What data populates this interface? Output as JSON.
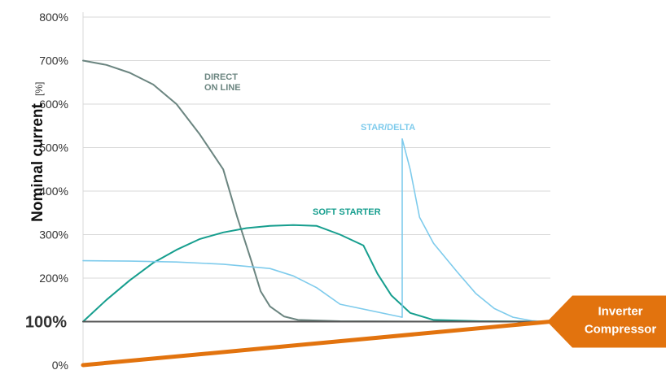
{
  "chart_data": {
    "type": "line",
    "xlabel": "",
    "ylabel": "Nominal current",
    "ylabel_unit": "[%]",
    "ylim": [
      0,
      800
    ],
    "yticks": [
      "0%",
      "100%",
      "200%",
      "300%",
      "400%",
      "500%",
      "600%",
      "700%",
      "800%"
    ],
    "emphasized_tick": "100%",
    "grid": "horizontal",
    "x_range": [
      0,
      1
    ],
    "series": [
      {
        "name": "DIRECT\nON LINE",
        "label_lines": [
          "DIRECT",
          "ON LINE"
        ],
        "color": "#6b8580",
        "points": [
          [
            0,
            700
          ],
          [
            0.05,
            690
          ],
          [
            0.1,
            672
          ],
          [
            0.15,
            645
          ],
          [
            0.2,
            600
          ],
          [
            0.25,
            530
          ],
          [
            0.3,
            450
          ],
          [
            0.33,
            340
          ],
          [
            0.36,
            240
          ],
          [
            0.38,
            170
          ],
          [
            0.4,
            135
          ],
          [
            0.43,
            112
          ],
          [
            0.46,
            104
          ],
          [
            0.55,
            101
          ],
          [
            0.8,
            100
          ],
          [
            1,
            100
          ]
        ]
      },
      {
        "name": "SOFT STARTER",
        "label_lines": [
          "SOFT STARTER"
        ],
        "color": "#169e8e",
        "points": [
          [
            0,
            100
          ],
          [
            0.05,
            150
          ],
          [
            0.1,
            195
          ],
          [
            0.15,
            235
          ],
          [
            0.2,
            265
          ],
          [
            0.25,
            290
          ],
          [
            0.3,
            305
          ],
          [
            0.35,
            315
          ],
          [
            0.4,
            320
          ],
          [
            0.45,
            322
          ],
          [
            0.5,
            320
          ],
          [
            0.55,
            300
          ],
          [
            0.6,
            275
          ],
          [
            0.63,
            210
          ],
          [
            0.66,
            160
          ],
          [
            0.7,
            120
          ],
          [
            0.75,
            104
          ],
          [
            0.85,
            101
          ],
          [
            1,
            100
          ]
        ]
      },
      {
        "name": "STAR/DELTA",
        "label_lines": [
          "STAR/DELTA"
        ],
        "color": "#7ecbec",
        "points": [
          [
            0,
            240
          ],
          [
            0.1,
            239
          ],
          [
            0.2,
            237
          ],
          [
            0.3,
            232
          ],
          [
            0.4,
            222
          ],
          [
            0.45,
            205
          ],
          [
            0.5,
            178
          ],
          [
            0.55,
            140
          ],
          [
            0.683,
            110
          ],
          [
            0.683,
            520
          ],
          [
            0.7,
            450
          ],
          [
            0.72,
            340
          ],
          [
            0.75,
            280
          ],
          [
            0.8,
            215
          ],
          [
            0.84,
            165
          ],
          [
            0.88,
            130
          ],
          [
            0.92,
            110
          ],
          [
            0.96,
            102
          ],
          [
            1,
            100
          ]
        ]
      },
      {
        "name": "100% reference",
        "color": "#555555",
        "points": [
          [
            0,
            100
          ],
          [
            1,
            100
          ]
        ]
      },
      {
        "name": "Inverter Compressor",
        "label_lines": [
          "Inverter",
          "Compressor"
        ],
        "color": "#e2730e",
        "points": [
          [
            0,
            0
          ],
          [
            1,
            100
          ]
        ]
      }
    ]
  }
}
